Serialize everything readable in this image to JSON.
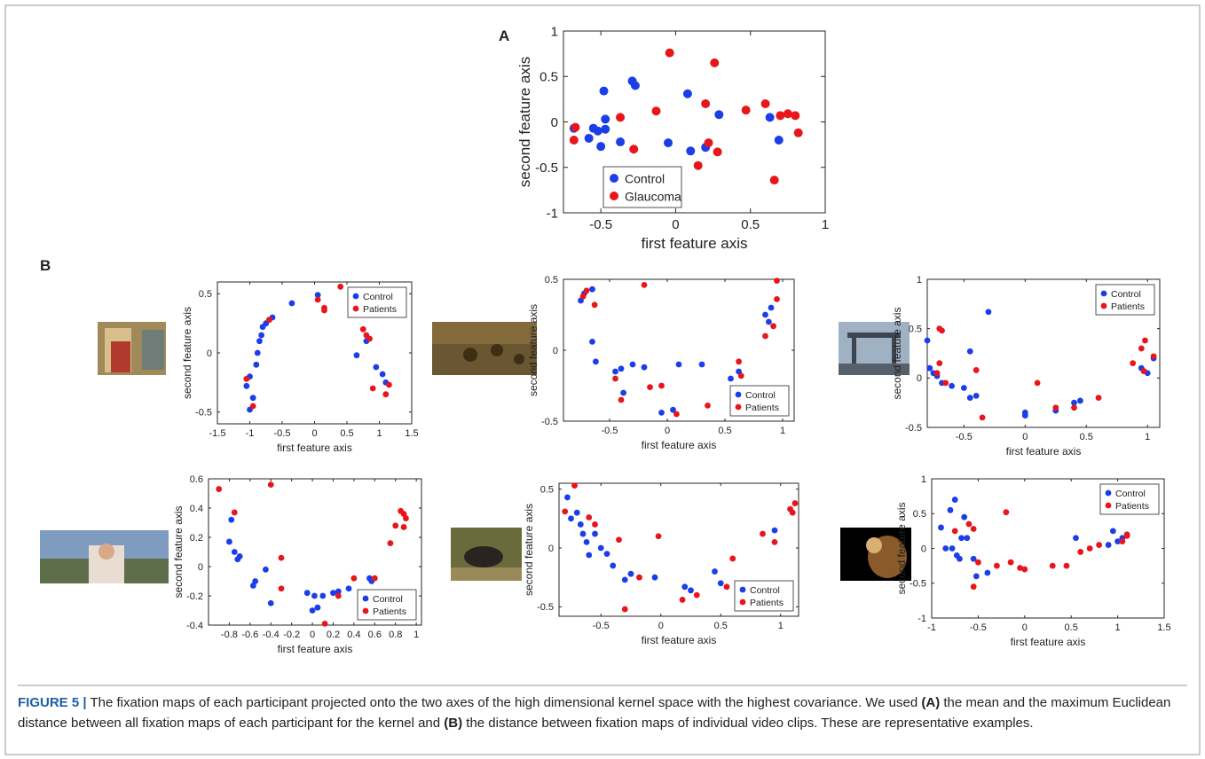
{
  "panel_labels": [
    "A",
    "B"
  ],
  "caption": {
    "label": "FIGURE 5 |",
    "text": [
      " The fixation maps of each participant projected onto the two axes of the high dimensional kernel space with the highest covariance. We used ",
      "(A)",
      " the mean and the maximum Euclidean distance between all fixation maps of each participant for the kernel and ",
      "(B)",
      " the distance between fixation maps of individual video clips. These are representative examples."
    ]
  },
  "chart_data": [
    {
      "type": "scatter",
      "xlabel": "first feature axis",
      "ylabel": "second feature axis",
      "xlim": [
        -0.75,
        1
      ],
      "xticks": [
        -0.5,
        0,
        0.5,
        1
      ],
      "ylim": [
        -1,
        1
      ],
      "yticks": [
        -1,
        -0.5,
        0,
        0.5,
        1
      ],
      "legend": "lower left",
      "series": [
        {
          "name": "Control",
          "color": "#1a3ee8",
          "x": [
            -0.68,
            -0.58,
            -0.55,
            -0.52,
            -0.5,
            -0.48,
            -0.47,
            -0.47,
            -0.37,
            -0.29,
            -0.27,
            -0.05,
            0.08,
            0.1,
            0.2,
            0.29,
            0.63,
            0.69
          ],
          "y": [
            -0.07,
            -0.18,
            -0.07,
            -0.1,
            -0.27,
            0.34,
            0.03,
            -0.08,
            -0.22,
            0.45,
            0.4,
            -0.23,
            0.31,
            -0.32,
            -0.28,
            0.08,
            0.05,
            -0.2
          ]
        },
        {
          "name": "Glaucoma",
          "color": "#e8161b",
          "x": [
            -0.68,
            -0.67,
            -0.37,
            -0.28,
            -0.13,
            -0.04,
            0.15,
            0.2,
            0.22,
            0.26,
            0.28,
            0.47,
            0.6,
            0.66,
            0.7,
            0.75,
            0.8,
            0.82
          ],
          "y": [
            -0.2,
            -0.06,
            0.05,
            -0.3,
            0.12,
            0.76,
            -0.48,
            0.2,
            -0.23,
            0.65,
            -0.33,
            0.13,
            0.2,
            -0.64,
            0.07,
            0.09,
            0.07,
            -0.12
          ]
        }
      ]
    },
    {
      "type": "scatter",
      "xlabel": "first feature axis",
      "ylabel": "second feature axis",
      "xlim": [
        -1.5,
        1.5
      ],
      "xticks": [
        -1.5,
        -1,
        -0.5,
        0,
        0.5,
        1,
        1.5
      ],
      "ylim": [
        -0.6,
        0.6
      ],
      "yticks": [
        -0.5,
        0,
        0.5
      ],
      "legend": "upper right",
      "series": [
        {
          "name": "Control",
          "color": "#1a3ee8",
          "x": [
            -1.0,
            -0.95,
            -1.05,
            -1.0,
            -0.9,
            -0.88,
            -0.85,
            -0.82,
            -0.8,
            -0.75,
            -0.65,
            -0.35,
            0.05,
            0.65,
            0.95,
            1.05,
            1.1,
            0.8
          ],
          "y": [
            -0.48,
            -0.38,
            -0.28,
            -0.2,
            -0.1,
            0.0,
            0.1,
            0.15,
            0.22,
            0.25,
            0.3,
            0.42,
            0.49,
            -0.02,
            -0.12,
            -0.18,
            -0.25,
            0.1
          ]
        },
        {
          "name": "Patients",
          "color": "#e8161b",
          "x": [
            -1.05,
            -0.95,
            -0.7,
            0.15,
            0.15,
            0.4,
            0.75,
            0.8,
            0.85,
            0.9,
            1.15,
            1.1,
            0.05
          ],
          "y": [
            -0.22,
            -0.45,
            0.28,
            0.38,
            0.36,
            0.56,
            0.2,
            0.15,
            0.12,
            -0.3,
            -0.27,
            -0.35,
            0.45
          ]
        }
      ]
    },
    {
      "type": "scatter",
      "xlabel": "first feature axis",
      "ylabel": "second feature axis",
      "xlim": [
        -0.9,
        1.1
      ],
      "xticks": [
        -0.5,
        0,
        0.5,
        1
      ],
      "ylim": [
        -0.5,
        0.5
      ],
      "yticks": [
        -0.5,
        0,
        0.5
      ],
      "legend": "lower right",
      "series": [
        {
          "name": "Control",
          "color": "#1a3ee8",
          "x": [
            -0.75,
            -0.72,
            -0.65,
            -0.65,
            -0.62,
            -0.45,
            -0.4,
            -0.38,
            -0.3,
            -0.2,
            -0.05,
            0.05,
            0.1,
            0.3,
            0.55,
            0.62,
            0.85,
            0.9,
            0.88
          ],
          "y": [
            0.35,
            0.4,
            0.43,
            0.06,
            -0.08,
            -0.15,
            -0.13,
            -0.3,
            -0.1,
            -0.12,
            -0.44,
            -0.42,
            -0.1,
            -0.1,
            -0.2,
            -0.15,
            0.25,
            0.3,
            0.2
          ]
        },
        {
          "name": "Patients",
          "color": "#e8161b",
          "x": [
            -0.73,
            -0.7,
            -0.63,
            -0.45,
            -0.4,
            -0.2,
            -0.15,
            -0.05,
            0.08,
            0.35,
            0.62,
            0.64,
            0.85,
            0.92,
            0.95,
            0.95
          ],
          "y": [
            0.38,
            0.42,
            0.32,
            -0.2,
            -0.35,
            0.46,
            -0.26,
            -0.25,
            -0.45,
            -0.39,
            -0.08,
            -0.18,
            0.1,
            0.17,
            0.36,
            0.49
          ]
        }
      ]
    },
    {
      "type": "scatter",
      "xlabel": "first feature axis",
      "ylabel": "second feature axis",
      "xlim": [
        -0.8,
        1.1
      ],
      "xticks": [
        -0.5,
        0,
        0.5,
        1
      ],
      "ylim": [
        -0.5,
        1
      ],
      "yticks": [
        -0.5,
        0,
        0.5,
        1
      ],
      "legend": "upper right",
      "series": [
        {
          "name": "Control",
          "color": "#1a3ee8",
          "x": [
            -0.8,
            -0.78,
            -0.75,
            -0.72,
            -0.68,
            -0.6,
            -0.5,
            -0.45,
            -0.45,
            -0.4,
            -0.3,
            0,
            0,
            0.25,
            0.4,
            0.45,
            0.95,
            1.0,
            1.05
          ],
          "y": [
            0.38,
            0.1,
            0.05,
            0.02,
            -0.05,
            -0.08,
            -0.1,
            0.27,
            -0.2,
            -0.18,
            0.67,
            -0.38,
            -0.35,
            -0.33,
            -0.25,
            -0.23,
            0.1,
            0.05,
            0.2
          ]
        },
        {
          "name": "Patients",
          "color": "#e8161b",
          "x": [
            -0.7,
            -0.68,
            -0.72,
            -0.65,
            -0.7,
            -0.4,
            -0.35,
            0.1,
            0.25,
            0.4,
            0.6,
            0.88,
            0.95,
            0.98,
            1.05,
            0.97
          ],
          "y": [
            0.5,
            0.48,
            0.05,
            -0.05,
            0.15,
            0.08,
            -0.4,
            -0.05,
            -0.3,
            -0.3,
            -0.2,
            0.15,
            0.3,
            0.38,
            0.22,
            0.07
          ]
        }
      ]
    },
    {
      "type": "scatter",
      "xlabel": "first feature axis",
      "ylabel": "second feature axis",
      "xlim": [
        -1,
        1.05
      ],
      "xticks": [
        -0.8,
        -0.6,
        -0.4,
        -0.2,
        0,
        0.2,
        0.4,
        0.6,
        0.8,
        1
      ],
      "ylim": [
        -0.4,
        0.6
      ],
      "yticks": [
        -0.4,
        -0.2,
        0,
        0.2,
        0.4,
        0.6
      ],
      "legend": "lower right",
      "series": [
        {
          "name": "Control",
          "color": "#1a3ee8",
          "x": [
            -0.78,
            -0.8,
            -0.75,
            -0.72,
            -0.7,
            -0.55,
            -0.57,
            -0.45,
            -0.4,
            -0.05,
            0,
            0.02,
            0.05,
            0.1,
            0.2,
            0.25,
            0.35,
            0.55,
            0.57
          ],
          "y": [
            0.32,
            0.17,
            0.1,
            0.05,
            0.07,
            -0.1,
            -0.13,
            -0.02,
            -0.25,
            -0.18,
            -0.3,
            -0.2,
            -0.28,
            -0.2,
            -0.18,
            -0.17,
            -0.15,
            -0.08,
            -0.1
          ]
        },
        {
          "name": "Patients",
          "color": "#e8161b",
          "x": [
            -0.9,
            -0.75,
            -0.4,
            -0.3,
            -0.3,
            0.12,
            0.25,
            0.4,
            0.6,
            0.75,
            0.8,
            0.85,
            0.88,
            0.88,
            0.9
          ],
          "y": [
            0.53,
            0.37,
            0.56,
            0.06,
            -0.15,
            -0.39,
            -0.2,
            -0.08,
            -0.08,
            0.16,
            0.28,
            0.38,
            0.36,
            0.27,
            0.33
          ]
        }
      ]
    },
    {
      "type": "scatter",
      "xlabel": "first feature axis",
      "ylabel": "second feature axis",
      "xlim": [
        -0.85,
        1.15
      ],
      "xticks": [
        -0.5,
        0,
        0.5,
        1
      ],
      "ylim": [
        -0.58,
        0.55
      ],
      "yticks": [
        -0.5,
        0,
        0.5
      ],
      "legend": "lower right",
      "series": [
        {
          "name": "Control",
          "color": "#1a3ee8",
          "x": [
            -0.78,
            -0.75,
            -0.7,
            -0.67,
            -0.65,
            -0.62,
            -0.6,
            -0.55,
            -0.5,
            -0.45,
            -0.4,
            -0.3,
            -0.25,
            -0.05,
            0.2,
            0.25,
            0.45,
            0.5,
            0.95
          ],
          "y": [
            0.43,
            0.25,
            0.3,
            0.2,
            0.12,
            0.05,
            -0.06,
            0.12,
            0.0,
            -0.05,
            -0.15,
            -0.27,
            -0.22,
            -0.25,
            -0.33,
            -0.36,
            -0.2,
            -0.3,
            0.15
          ]
        },
        {
          "name": "Patients",
          "color": "#e8161b",
          "x": [
            -0.8,
            -0.72,
            -0.6,
            -0.55,
            -0.35,
            -0.3,
            -0.18,
            -0.02,
            0.18,
            0.3,
            0.55,
            0.6,
            0.85,
            0.95,
            1.1,
            1.12,
            1.08
          ],
          "y": [
            0.31,
            0.53,
            0.26,
            0.2,
            0.07,
            -0.52,
            -0.25,
            0.1,
            -0.44,
            -0.4,
            -0.33,
            -0.09,
            0.12,
            0.05,
            0.3,
            0.38,
            0.33
          ]
        }
      ]
    },
    {
      "type": "scatter",
      "xlabel": "first feature axis",
      "ylabel": "second feature axis",
      "xlim": [
        -1,
        1.5
      ],
      "xticks": [
        -1,
        -0.5,
        0,
        0.5,
        1,
        1.5
      ],
      "ylim": [
        -1,
        1
      ],
      "yticks": [
        -1,
        -0.5,
        0,
        0.5,
        1
      ],
      "legend": "upper right",
      "series": [
        {
          "name": "Control",
          "color": "#1a3ee8",
          "x": [
            -0.9,
            -0.85,
            -0.8,
            -0.78,
            -0.75,
            -0.73,
            -0.7,
            -0.68,
            -0.65,
            -0.62,
            -0.55,
            -0.52,
            -0.4,
            0.55,
            0.95,
            1.0,
            1.05,
            0.9
          ],
          "y": [
            0.3,
            0.0,
            0.55,
            0.0,
            0.7,
            -0.1,
            -0.15,
            0.15,
            0.45,
            0.15,
            -0.15,
            -0.4,
            -0.35,
            0.15,
            0.25,
            0.1,
            0.15,
            0.05
          ]
        },
        {
          "name": "Patients",
          "color": "#e8161b",
          "x": [
            -0.75,
            -0.6,
            -0.55,
            -0.55,
            -0.5,
            -0.3,
            -0.2,
            -0.15,
            -0.05,
            0.0,
            0.3,
            0.45,
            0.6,
            0.8,
            0.7,
            1.05,
            1.1,
            1.1
          ],
          "y": [
            0.25,
            0.35,
            -0.55,
            0.28,
            -0.2,
            -0.25,
            0.52,
            -0.2,
            -0.28,
            -0.3,
            -0.25,
            -0.25,
            -0.05,
            0.05,
            0.0,
            0.1,
            0.2,
            0.18
          ]
        }
      ]
    }
  ]
}
